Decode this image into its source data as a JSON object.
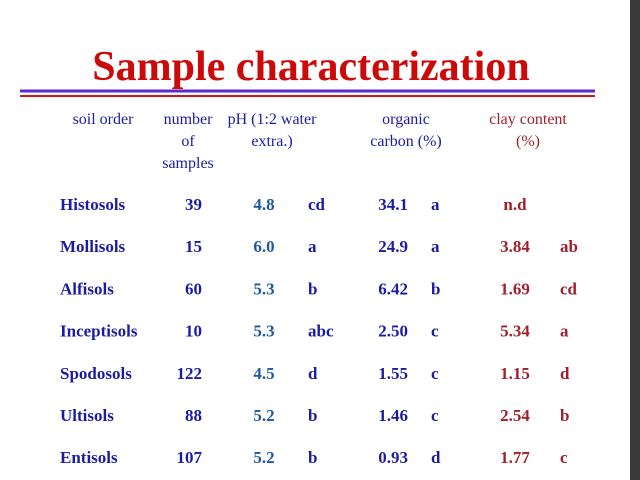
{
  "slide": {
    "title": "Sample characterization",
    "headers": {
      "order": [
        "soil order"
      ],
      "samples": [
        "number",
        "of",
        "samples"
      ],
      "ph": [
        "pH (1:2 water",
        "extra.)"
      ],
      "carbon": [
        "organic",
        "carbon (%)"
      ],
      "clay": [
        "clay content",
        "(%)"
      ]
    },
    "rows": [
      {
        "order": "Histosols",
        "samples": "39",
        "ph": "4.8",
        "ph_group": "cd",
        "carbon": "34.1",
        "carbon_group": "a",
        "clay": "n.d"
      },
      {
        "order": "Mollisols",
        "samples": "15",
        "ph": "6.0",
        "ph_group": "a",
        "carbon": "24.9",
        "carbon_group": "a",
        "clay": "3.84",
        "clay_group": "ab"
      },
      {
        "order": "Alfisols",
        "samples": "60",
        "ph": "5.3",
        "ph_group": "b",
        "carbon": "6.42",
        "carbon_group": "b",
        "clay": "1.69",
        "clay_group": "cd"
      },
      {
        "order": "Inceptisols",
        "samples": "10",
        "ph": "5.3",
        "ph_group": "abc",
        "carbon": "2.50",
        "carbon_group": "c",
        "clay": "5.34",
        "clay_group": "a"
      },
      {
        "order": "Spodosols",
        "samples": "122",
        "ph": "4.5",
        "ph_group": "d",
        "carbon": "1.55",
        "carbon_group": "c",
        "clay": "1.15",
        "clay_group": "d"
      },
      {
        "order": "Ultisols",
        "samples": "88",
        "ph": "5.2",
        "ph_group": "b",
        "carbon": "1.46",
        "carbon_group": "c",
        "clay": "2.54",
        "clay_group": "b"
      },
      {
        "order": "Entisols",
        "samples": "107",
        "ph": "5.2",
        "ph_group": "b",
        "carbon": "0.93",
        "carbon_group": "d",
        "clay": "1.77",
        "clay_group": "c"
      }
    ]
  }
}
